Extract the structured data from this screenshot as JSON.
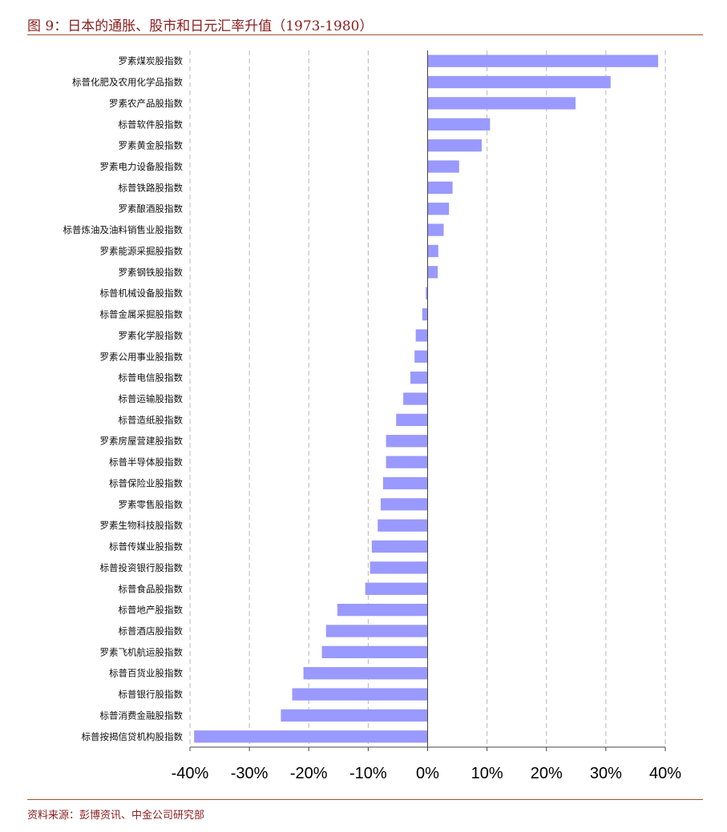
{
  "figure": {
    "title": "图 9：日本的通胀、股市和日元汇率升值（1973-1980）",
    "source": "资料来源：彭博资讯、中金公司研究部"
  },
  "chart_data": {
    "type": "bar",
    "orientation": "horizontal",
    "title": "图 9：日本的通胀、股市和日元汇率升值（1973-1980）",
    "xlabel": "",
    "ylabel": "",
    "xlim": [
      -40,
      40
    ],
    "xticks": [
      -40,
      -30,
      -20,
      -10,
      0,
      10,
      20,
      30,
      40
    ],
    "xtick_labels": [
      "-40%",
      "-30%",
      "-20%",
      "-10%",
      "0%",
      "10%",
      "20%",
      "30%",
      "40%"
    ],
    "grid": "vertical dashed",
    "bar_color": "#9999ff",
    "categories": [
      "罗素煤炭股指数",
      "标普化肥及农用化学品指数",
      "罗素农产品股指数",
      "标普软件股指数",
      "罗素黄金股指数",
      "罗素电力设备股指数",
      "标普铁路股指数",
      "罗素酿酒股指数",
      "标普炼油及油料销售业股指数",
      "罗素能源采掘股指数",
      "罗素钢铁股指数",
      "标普机械设备股指数",
      "标普金属采掘股指数",
      "罗素化学股指数",
      "罗素公用事业股指数",
      "标普电信股指数",
      "标普运输股指数",
      "标普造纸股指数",
      "罗素房屋营建股指数",
      "标普半导体股指数",
      "标普保险业股指数",
      "罗素零售股指数",
      "罗素生物科技股指数",
      "标普传媒业股指数",
      "标普投资银行股指数",
      "标普食品股指数",
      "标普地产股指数",
      "标普酒店股指数",
      "罗素飞机航运股指数",
      "标普百货业股指数",
      "标普银行股指数",
      "标普消费金融股指数",
      "标普按揭信贷机构股指数"
    ],
    "values": [
      38.8,
      30.8,
      24.9,
      10.5,
      9.1,
      5.3,
      4.2,
      3.6,
      2.7,
      1.8,
      1.7,
      -0.3,
      -0.9,
      -2.0,
      -2.2,
      -2.9,
      -4.1,
      -5.3,
      -7.0,
      -7.0,
      -7.5,
      -7.9,
      -8.4,
      -9.4,
      -9.7,
      -10.5,
      -15.2,
      -17.1,
      -17.8,
      -20.9,
      -22.8,
      -24.7,
      -39.3
    ]
  }
}
